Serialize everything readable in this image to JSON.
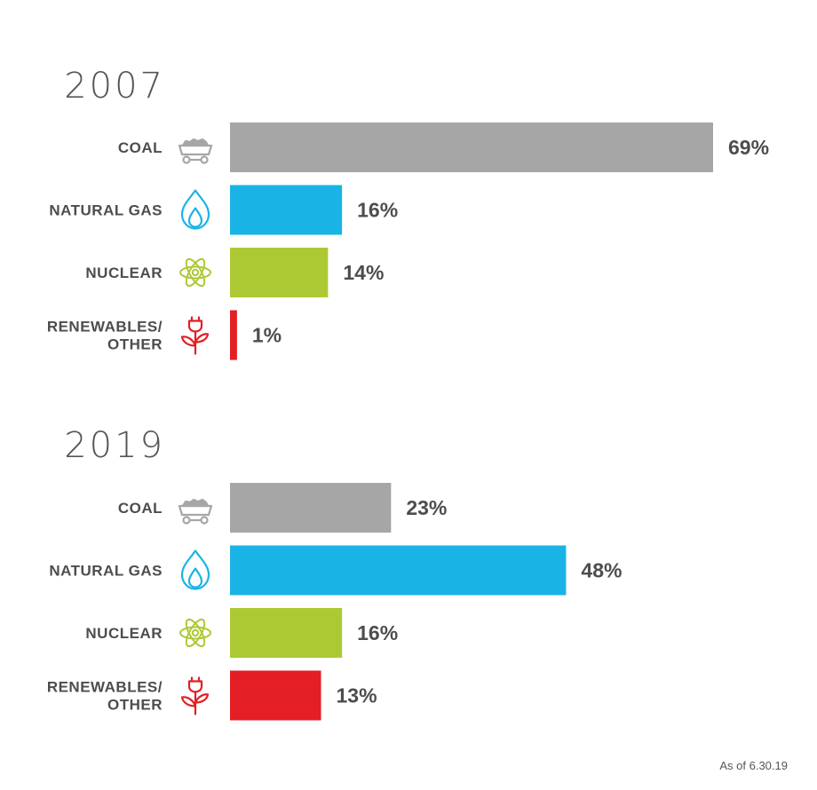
{
  "chart_data": [
    {
      "type": "bar",
      "orientation": "horizontal",
      "title": "2007",
      "categories": [
        "COAL",
        "NATURAL GAS",
        "NUCLEAR",
        "RENEWABLES/ OTHER"
      ],
      "values": [
        69,
        16,
        14,
        1
      ],
      "value_labels": [
        "69%",
        "16%",
        "14%",
        "1%"
      ],
      "xlim": [
        0,
        69
      ],
      "colors": [
        "#a6a6a6",
        "#1ab3e6",
        "#acc934",
        "#e31e24"
      ],
      "icons": [
        "coal-cart-icon",
        "gas-flame-icon",
        "atom-icon",
        "plug-plant-icon"
      ]
    },
    {
      "type": "bar",
      "orientation": "horizontal",
      "title": "2019",
      "categories": [
        "COAL",
        "NATURAL GAS",
        "NUCLEAR",
        "RENEWABLES/ OTHER"
      ],
      "values": [
        23,
        48,
        16,
        13
      ],
      "value_labels": [
        "23%",
        "48%",
        "16%",
        "13%"
      ],
      "xlim": [
        0,
        69
      ],
      "colors": [
        "#a6a6a6",
        "#1ab3e6",
        "#acc934",
        "#e31e24"
      ],
      "icons": [
        "coal-cart-icon",
        "gas-flame-icon",
        "atom-icon",
        "plug-plant-icon"
      ]
    }
  ],
  "footnote": "As of 6.30.19"
}
